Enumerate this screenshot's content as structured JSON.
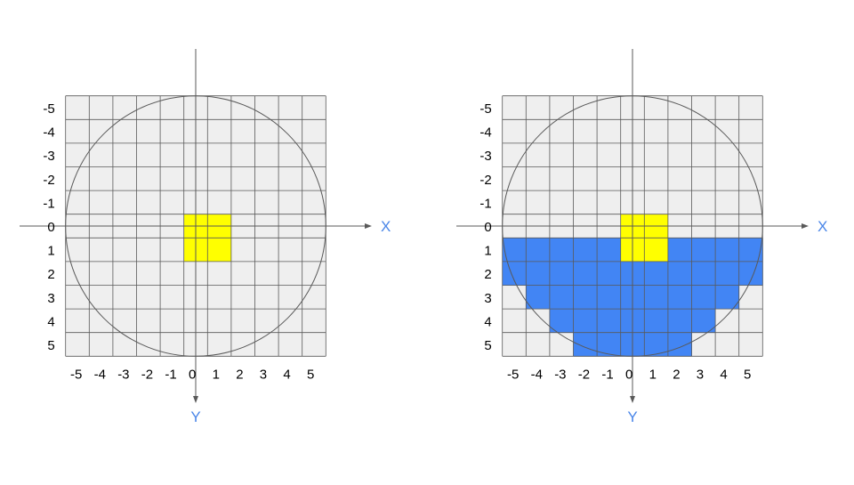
{
  "colors": {
    "background": "#ffffff",
    "grid_fill": "#efefef",
    "grid_line": "#595959",
    "origin_cell": "#ffff00",
    "filled_cell": "#4285f4",
    "axis_label": "#4a86e8",
    "tick_label": "#000000"
  },
  "axes": {
    "x_label": "X",
    "y_label": "Y",
    "x_ticks": [
      "-5",
      "-4",
      "-3",
      "-2",
      "-1",
      "0",
      "1",
      "2",
      "3",
      "4",
      "5"
    ],
    "y_ticks": [
      "-5",
      "-4",
      "-3",
      "-2",
      "-1",
      "0",
      "1",
      "2",
      "3",
      "4",
      "5"
    ]
  },
  "panels": [
    {
      "id": "left",
      "circle_radius": 5.5,
      "origin_cells": [
        [
          -1,
          -1
        ],
        [
          0,
          -1
        ],
        [
          -1,
          0
        ],
        [
          0,
          0
        ]
      ],
      "filled_cells": []
    },
    {
      "id": "right",
      "circle_radius": 5.5,
      "origin_cells": [
        [
          -1,
          -1
        ],
        [
          0,
          -1
        ],
        [
          -1,
          0
        ],
        [
          0,
          0
        ]
      ],
      "filled_rows": [
        {
          "row": 1,
          "from": -6,
          "to": 4
        },
        {
          "row": 2,
          "from": -6,
          "to": 4
        },
        {
          "row": 3,
          "from": -5,
          "to": 3
        },
        {
          "row": 4,
          "from": -4,
          "to": 2
        },
        {
          "row": 5,
          "from": -3,
          "to": 1
        }
      ]
    }
  ]
}
